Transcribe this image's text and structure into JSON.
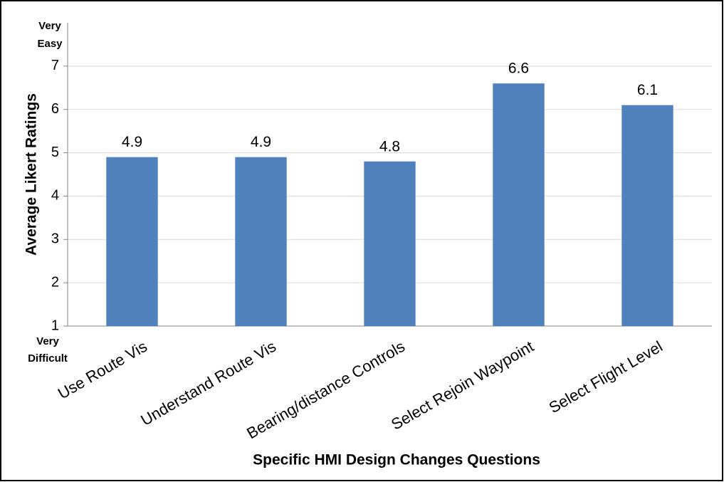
{
  "chart_data": {
    "type": "bar",
    "x_label": "Specific HMI Design Changes Questions",
    "y_label": "Average Likert Ratings",
    "top_label": [
      "Very",
      "Easy"
    ],
    "bottom_label": [
      "Very",
      "Difficult"
    ],
    "categories": [
      "Use Route Vis",
      "Understand Route Vis",
      "Bearing/distance Controls",
      "Select Rejoin Waypoint",
      "Select Flight Level"
    ],
    "values": [
      4.9,
      4.9,
      4.8,
      6.6,
      6.1
    ],
    "color": "#4f81bd",
    "ylim": [
      1,
      8
    ],
    "yticks": [
      1,
      2,
      3,
      4,
      5,
      6,
      7
    ],
    "grid": true
  }
}
